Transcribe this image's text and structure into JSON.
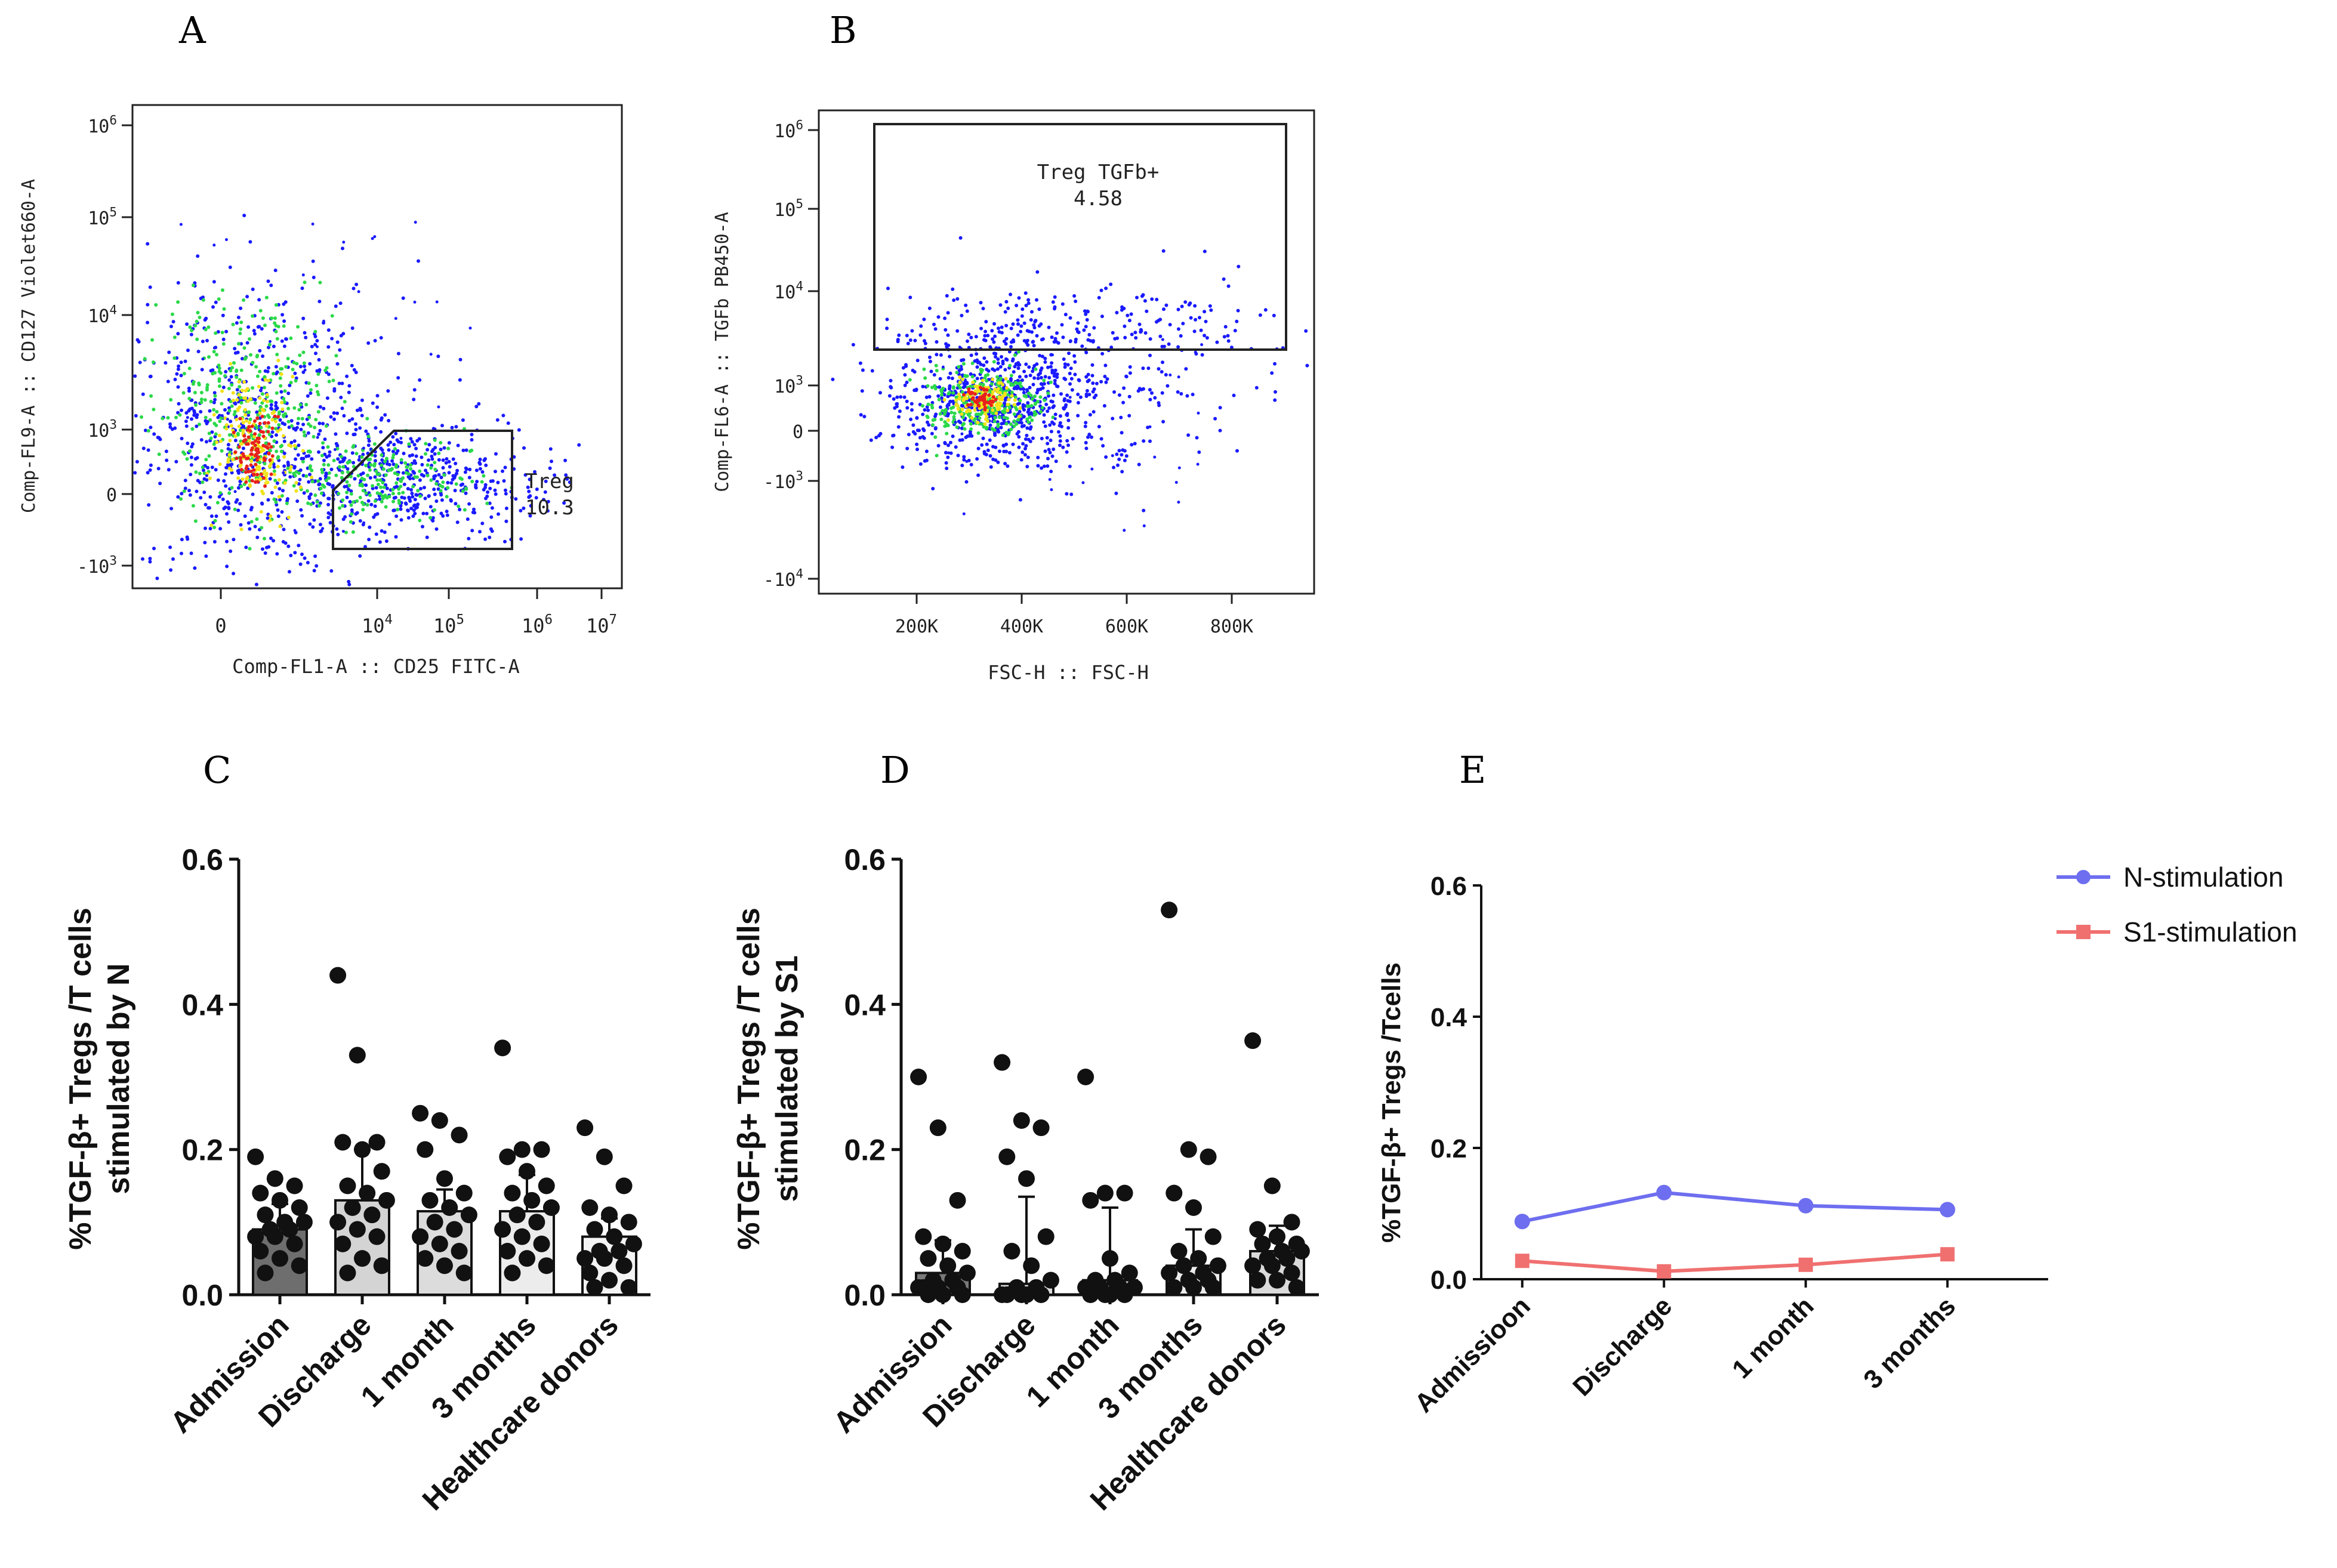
{
  "panels": {
    "A": "A",
    "B": "B",
    "C": "C",
    "D": "D",
    "E": "E"
  },
  "chart_data": [
    {
      "id": "A",
      "type": "scatter",
      "title": "",
      "xlabel": "Comp-FL1-A :: CD25 FITC-A",
      "ylabel": "Comp-FL9-A :: CD127 Violet660-A",
      "x_ticks": [
        {
          "base": "0",
          "exp": ""
        },
        {
          "base": "10",
          "exp": "4"
        },
        {
          "base": "10",
          "exp": "5"
        },
        {
          "base": "10",
          "exp": "6"
        },
        {
          "base": "10",
          "exp": "7"
        }
      ],
      "y_ticks": [
        {
          "base": "-10",
          "exp": "3"
        },
        {
          "base": "0",
          "exp": ""
        },
        {
          "base": "10",
          "exp": "3"
        },
        {
          "base": "10",
          "exp": "4"
        },
        {
          "base": "10",
          "exp": "5"
        },
        {
          "base": "10",
          "exp": "6"
        }
      ],
      "gate": {
        "name": "Treg",
        "value": "10.3"
      },
      "colors": {
        "dense": "#e8211c",
        "mid": "#f2e21a",
        "low": "#2bd94a",
        "sparse": "#1a1aff"
      }
    },
    {
      "id": "B",
      "type": "scatter",
      "title": "",
      "xlabel": "FSC-H :: FSC-H",
      "ylabel": "Comp-FL6-A :: TGFb PB450-A",
      "x_ticks": [
        {
          "base": "200K",
          "exp": ""
        },
        {
          "base": "400K",
          "exp": ""
        },
        {
          "base": "600K",
          "exp": ""
        },
        {
          "base": "800K",
          "exp": ""
        }
      ],
      "y_ticks": [
        {
          "base": "-10",
          "exp": "4"
        },
        {
          "base": "-10",
          "exp": "3"
        },
        {
          "base": "0",
          "exp": ""
        },
        {
          "base": "10",
          "exp": "3"
        },
        {
          "base": "10",
          "exp": "4"
        },
        {
          "base": "10",
          "exp": "5"
        },
        {
          "base": "10",
          "exp": "6"
        }
      ],
      "gate": {
        "name": "Treg TGFb+",
        "value": "4.58"
      }
    },
    {
      "id": "C",
      "type": "bar",
      "ylabel_line1": "%TGF-β+ Tregs /T cells",
      "ylabel_line2": "stimulated by N",
      "categories": [
        "Admission",
        "Discharge",
        "1 month",
        "3 months",
        "Healthcare donors"
      ],
      "ylim": [
        0,
        0.6
      ],
      "y_ticks": [
        "0.0",
        "0.2",
        "0.4",
        "0.6"
      ],
      "bar_colors": [
        "#6e6e6e",
        "#d4d4d4",
        "#dcdcdc",
        "#ececec",
        "#f4f4f4"
      ],
      "values": [
        0.09,
        0.13,
        0.115,
        0.115,
        0.08
      ],
      "errors": [
        0.035,
        0.07,
        0.03,
        0.05,
        0.025
      ],
      "points": [
        [
          0.19,
          0.16,
          0.15,
          0.14,
          0.13,
          0.12,
          0.11,
          0.1,
          0.1,
          0.09,
          0.09,
          0.08,
          0.08,
          0.07,
          0.06,
          0.05,
          0.04,
          0.03
        ],
        [
          0.44,
          0.33,
          0.21,
          0.21,
          0.2,
          0.17,
          0.15,
          0.14,
          0.13,
          0.12,
          0.11,
          0.1,
          0.09,
          0.08,
          0.07,
          0.05,
          0.04,
          0.03
        ],
        [
          0.25,
          0.24,
          0.22,
          0.2,
          0.16,
          0.14,
          0.13,
          0.12,
          0.11,
          0.1,
          0.09,
          0.08,
          0.07,
          0.06,
          0.05,
          0.04,
          0.03
        ],
        [
          0.34,
          0.2,
          0.2,
          0.19,
          0.17,
          0.15,
          0.14,
          0.13,
          0.12,
          0.11,
          0.1,
          0.09,
          0.08,
          0.07,
          0.06,
          0.05,
          0.04,
          0.03
        ],
        [
          0.23,
          0.19,
          0.15,
          0.12,
          0.11,
          0.1,
          0.09,
          0.08,
          0.07,
          0.06,
          0.06,
          0.05,
          0.05,
          0.04,
          0.03,
          0.02,
          0.01,
          0.01
        ]
      ]
    },
    {
      "id": "D",
      "type": "bar",
      "ylabel_line1": "%TGF-β+ Tregs /T cells",
      "ylabel_line2": "stimulated by S1",
      "categories": [
        "Admission",
        "Discharge",
        "1 month",
        "3 months",
        "Healthcare donors"
      ],
      "ylim": [
        0,
        0.6
      ],
      "y_ticks": [
        "0.0",
        "0.2",
        "0.4",
        "0.6"
      ],
      "bar_colors": [
        "#7a7a7a",
        "#dcdcdc",
        "#e2e2e2",
        "#ececec",
        "#dadada"
      ],
      "values": [
        0.03,
        0.015,
        0.02,
        0.04,
        0.06
      ],
      "errors": [
        0.045,
        0.12,
        0.1,
        0.05,
        0.035
      ],
      "points": [
        [
          0.3,
          0.23,
          0.13,
          0.08,
          0.07,
          0.06,
          0.05,
          0.04,
          0.03,
          0.02,
          0.02,
          0.01,
          0.01,
          0.01,
          0.01,
          0.0,
          0.0,
          0.0
        ],
        [
          0.32,
          0.24,
          0.23,
          0.19,
          0.16,
          0.08,
          0.06,
          0.04,
          0.02,
          0.01,
          0.01,
          0.0,
          0.0,
          0.0,
          0.0,
          0.0
        ],
        [
          0.3,
          0.14,
          0.14,
          0.13,
          0.05,
          0.03,
          0.02,
          0.02,
          0.01,
          0.01,
          0.01,
          0.01,
          0.0,
          0.0,
          0.0,
          0.0
        ],
        [
          0.53,
          0.2,
          0.19,
          0.14,
          0.12,
          0.08,
          0.06,
          0.05,
          0.04,
          0.04,
          0.03,
          0.03,
          0.02,
          0.02,
          0.01,
          0.01,
          0.01
        ],
        [
          0.35,
          0.15,
          0.1,
          0.09,
          0.08,
          0.07,
          0.07,
          0.06,
          0.06,
          0.05,
          0.05,
          0.04,
          0.04,
          0.03,
          0.02,
          0.02,
          0.01
        ]
      ]
    },
    {
      "id": "E",
      "type": "line",
      "ylabel": "%TGF-β+ Tregs /Tcells",
      "categories": [
        "Admissioon",
        "Discharge",
        "1 month",
        "3 months"
      ],
      "ylim": [
        0,
        0.6
      ],
      "y_ticks": [
        "0.0",
        "0.2",
        "0.4",
        "0.6"
      ],
      "series": [
        {
          "name": "N-stimulation",
          "color": "#6e6ef0",
          "marker": "circle",
          "values": [
            0.088,
            0.132,
            0.112,
            0.106
          ]
        },
        {
          "name": "S1-stimulation",
          "color": "#f07070",
          "marker": "square",
          "values": [
            0.028,
            0.012,
            0.022,
            0.038
          ]
        }
      ]
    }
  ]
}
